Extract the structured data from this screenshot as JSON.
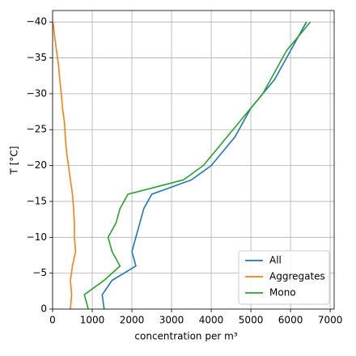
{
  "chart_data": {
    "type": "line",
    "xlabel": "concentration per m³",
    "ylabel": "T [°C]",
    "y": [
      0,
      -2,
      -4,
      -6,
      -8,
      -10,
      -12,
      -14,
      -16,
      -18,
      -20,
      -22,
      -24,
      -26,
      -28,
      -30,
      -32,
      -34,
      -36,
      -38,
      -40
    ],
    "series": [
      {
        "name": "All",
        "color": "#1f77b4",
        "values": [
          1300,
          1250,
          1500,
          2100,
          2000,
          2100,
          2200,
          2300,
          2500,
          3500,
          4000,
          4300,
          4600,
          4800,
          5000,
          5300,
          5600,
          5800,
          6000,
          6200,
          6400
        ]
      },
      {
        "name": "Aggregates",
        "color": "#ff7f0e",
        "values": [
          450,
          480,
          450,
          500,
          580,
          550,
          550,
          530,
          500,
          450,
          400,
          350,
          320,
          300,
          250,
          220,
          180,
          150,
          100,
          50,
          10
        ]
      },
      {
        "name": "Mono",
        "color": "#2ca02c",
        "values": [
          900,
          800,
          1300,
          1700,
          1500,
          1400,
          1600,
          1700,
          1900,
          3300,
          3800,
          4100,
          4400,
          4700,
          5000,
          5300,
          5500,
          5700,
          5900,
          6200,
          6500
        ]
      }
    ],
    "xlim": [
      0,
      7100
    ],
    "xticks": [
      0,
      1000,
      2000,
      3000,
      4000,
      5000,
      6000,
      7000
    ],
    "ylim": [
      0,
      -41.6
    ],
    "yticks": [
      0,
      {
        "value": -5,
        "label": "−5"
      },
      {
        "value": -10,
        "label": "−10"
      },
      {
        "value": -15,
        "label": "−15"
      },
      {
        "value": -20,
        "label": "−20"
      },
      {
        "value": -25,
        "label": "−25"
      },
      {
        "value": -30,
        "label": "−30"
      },
      {
        "value": -35,
        "label": "−35"
      },
      {
        "value": -40,
        "label": "−40"
      }
    ],
    "grid": true,
    "legend": "lower right"
  }
}
